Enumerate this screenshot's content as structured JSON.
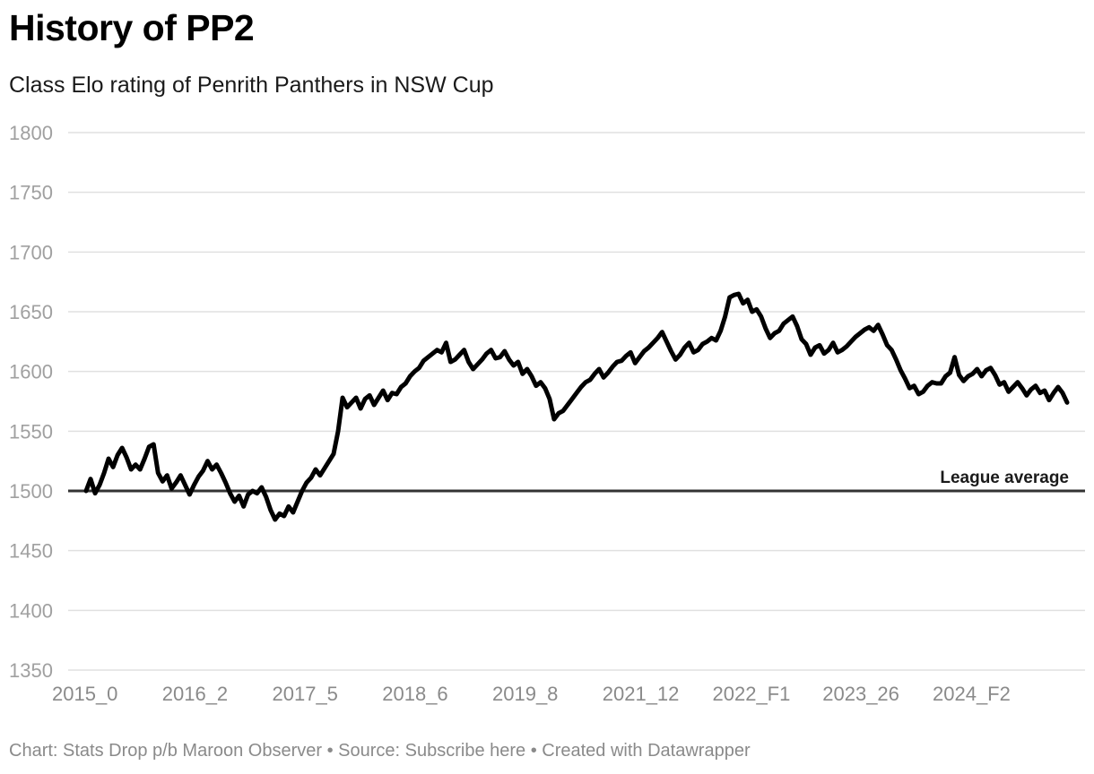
{
  "header": {
    "title": "History of PP2",
    "subtitle": "Class Elo rating of Penrith Panthers in NSW Cup"
  },
  "footer": {
    "text": "Chart: Stats Drop p/b Maroon Observer • Source: Subscribe here • Created with Datawrapper"
  },
  "colors": {
    "line": "#000000",
    "grid": "#e0e0e0",
    "tick_text": "#a0a0a0",
    "x_tick_text": "#8a8a8a",
    "reference": "#333333"
  },
  "chart_data": {
    "type": "line",
    "title": "History of PP2",
    "subtitle": "Class Elo rating of Penrith Panthers in NSW Cup",
    "xlabel": "",
    "ylabel": "",
    "ylim": [
      1350,
      1800
    ],
    "y_ticks": [
      "1350",
      "1400",
      "1450",
      "1500",
      "1550",
      "1600",
      "1650",
      "1700",
      "1750",
      "1800"
    ],
    "x_tick_labels": [
      "2015_0",
      "2016_2",
      "2017_5",
      "2018_6",
      "2019_8",
      "2021_12",
      "2022_F1",
      "2023_26",
      "2024_F2"
    ],
    "grid": true,
    "reference_line": {
      "value": 1500,
      "label": "League average"
    },
    "series": [
      {
        "name": "Penrith Panthers",
        "values": [
          1500,
          1510,
          1498,
          1505,
          1515,
          1527,
          1520,
          1530,
          1536,
          1528,
          1518,
          1522,
          1518,
          1527,
          1537,
          1539,
          1515,
          1508,
          1513,
          1502,
          1507,
          1513,
          1505,
          1497,
          1505,
          1512,
          1517,
          1525,
          1518,
          1522,
          1515,
          1507,
          1498,
          1491,
          1496,
          1487,
          1497,
          1500,
          1498,
          1503,
          1495,
          1484,
          1476,
          1481,
          1479,
          1487,
          1482,
          1491,
          1500,
          1507,
          1511,
          1518,
          1513,
          1519,
          1525,
          1531,
          1550,
          1578,
          1570,
          1574,
          1578,
          1569,
          1577,
          1580,
          1572,
          1578,
          1584,
          1576,
          1582,
          1581,
          1587,
          1590,
          1596,
          1600,
          1603,
          1609,
          1612,
          1615,
          1618,
          1616,
          1624,
          1608,
          1610,
          1614,
          1618,
          1608,
          1602,
          1606,
          1610,
          1615,
          1618,
          1611,
          1612,
          1617,
          1610,
          1605,
          1608,
          1598,
          1602,
          1596,
          1588,
          1591,
          1586,
          1577,
          1560,
          1565,
          1567,
          1572,
          1577,
          1582,
          1587,
          1591,
          1593,
          1598,
          1602,
          1595,
          1599,
          1604,
          1608,
          1609,
          1613,
          1616,
          1607,
          1612,
          1617,
          1620,
          1624,
          1628,
          1633,
          1625,
          1617,
          1610,
          1614,
          1620,
          1624,
          1616,
          1618,
          1623,
          1625,
          1628,
          1626,
          1634,
          1646,
          1662,
          1664,
          1665,
          1657,
          1660,
          1650,
          1652,
          1646,
          1636,
          1628,
          1632,
          1634,
          1640,
          1643,
          1646,
          1638,
          1627,
          1623,
          1614,
          1620,
          1622,
          1615,
          1618,
          1624,
          1616,
          1618,
          1621,
          1625,
          1629,
          1632,
          1635,
          1637,
          1634,
          1639,
          1631,
          1622,
          1618,
          1610,
          1601,
          1594,
          1586,
          1588,
          1581,
          1583,
          1588,
          1591,
          1590,
          1590,
          1596,
          1599,
          1612,
          1597,
          1592,
          1596,
          1598,
          1602,
          1596,
          1601,
          1603,
          1597,
          1589,
          1591,
          1583,
          1587,
          1591,
          1586,
          1580,
          1585,
          1588,
          1582,
          1584,
          1576,
          1582,
          1587,
          1582,
          1574
        ]
      }
    ]
  }
}
